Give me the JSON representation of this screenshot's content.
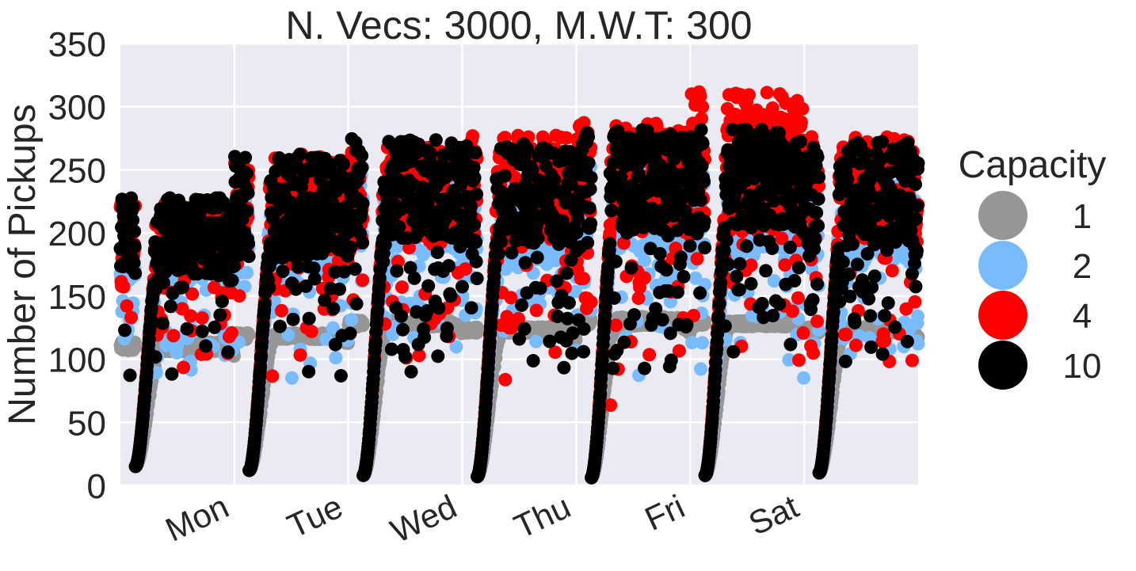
{
  "chart_data": {
    "type": "scatter",
    "title": "N. Vecs: 3000, M.W.T: 300",
    "ylabel": "Number of Pickups",
    "xlabel": "",
    "xlim": [
      0,
      7
    ],
    "ylim": [
      0,
      350
    ],
    "yticks": [
      0,
      50,
      100,
      150,
      200,
      250,
      300,
      350
    ],
    "xticks": [
      {
        "value": 1,
        "label": "Mon"
      },
      {
        "value": 2,
        "label": "Tue"
      },
      {
        "value": 3,
        "label": "Wed"
      },
      {
        "value": 4,
        "label": "Thu"
      },
      {
        "value": 5,
        "label": "Fri"
      },
      {
        "value": 6,
        "label": "Sat"
      }
    ],
    "grid": true,
    "legend": {
      "title": "Capacity",
      "placement": "right"
    },
    "series": [
      {
        "name": "1",
        "color": "#969696",
        "daily_troughs": [
          15,
          12,
          8,
          7,
          6,
          8,
          10
        ],
        "daily_peaks": [
          [
            105,
            120
          ],
          [
            115,
            125
          ],
          [
            125,
            135
          ],
          [
            120,
            130
          ],
          [
            125,
            140
          ],
          [
            125,
            135
          ],
          [
            120,
            130
          ]
        ]
      },
      {
        "name": "2",
        "color": "#78bbff",
        "daily_troughs": [
          15,
          12,
          8,
          7,
          6,
          8,
          10
        ],
        "daily_peaks": [
          [
            165,
            190
          ],
          [
            175,
            230
          ],
          [
            195,
            250
          ],
          [
            185,
            240
          ],
          [
            195,
            270
          ],
          [
            195,
            250
          ],
          [
            185,
            240
          ]
        ]
      },
      {
        "name": "4",
        "color": "#ff0000",
        "daily_troughs": [
          15,
          12,
          8,
          7,
          6,
          8,
          10
        ],
        "daily_peaks": [
          [
            180,
            225
          ],
          [
            195,
            265
          ],
          [
            210,
            270
          ],
          [
            205,
            280
          ],
          [
            215,
            290
          ],
          [
            220,
            315
          ],
          [
            205,
            280
          ]
        ]
      },
      {
        "name": "10",
        "color": "#000000",
        "daily_troughs": [
          15,
          12,
          8,
          7,
          6,
          8,
          10
        ],
        "daily_peaks": [
          [
            175,
            230
          ],
          [
            190,
            265
          ],
          [
            205,
            278
          ],
          [
            200,
            273
          ],
          [
            210,
            285
          ],
          [
            215,
            285
          ],
          [
            200,
            275
          ]
        ]
      }
    ]
  }
}
